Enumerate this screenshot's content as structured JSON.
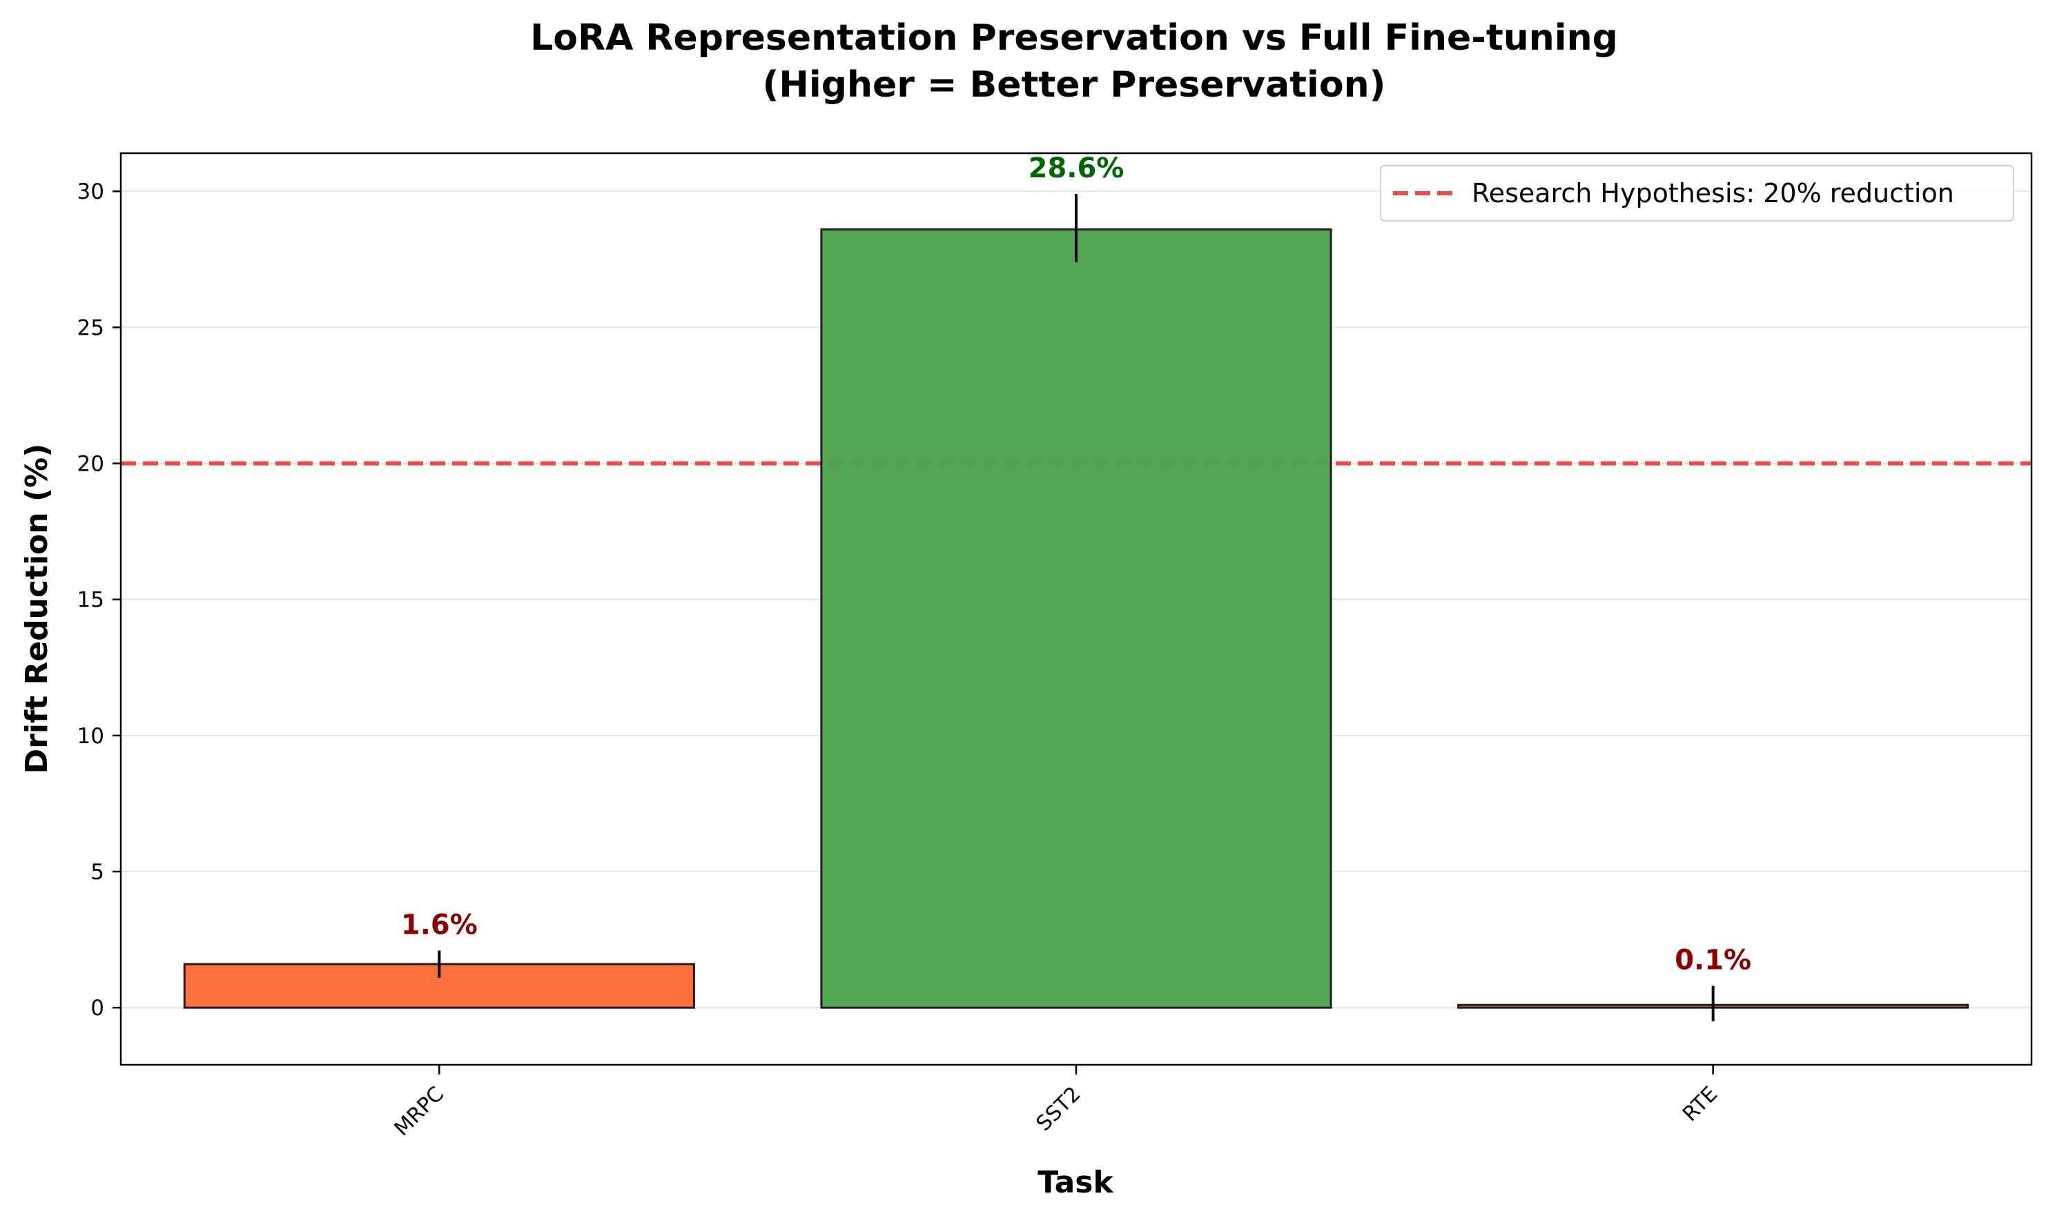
{
  "chart_data": {
    "type": "bar",
    "title_line1": "LoRA Representation Preservation vs Full Fine-tuning",
    "title_line2": "(Higher = Better Preservation)",
    "xlabel": "Task",
    "ylabel": "Drift Reduction (%)",
    "categories": [
      "MRPC",
      "SST2",
      "RTE"
    ],
    "values": [
      1.6,
      28.6,
      0.1
    ],
    "error_low": [
      1.1,
      27.4,
      -0.5
    ],
    "error_high": [
      2.1,
      29.9,
      0.8
    ],
    "data_labels": [
      "1.6%",
      "28.6%",
      "0.1%"
    ],
    "bar_colors": [
      "#ff6b35",
      "#4fa34f",
      "#ff6b35"
    ],
    "label_colors": [
      "#8b0000",
      "#006400",
      "#8b0000"
    ],
    "ylim": [
      -2.1,
      31.4
    ],
    "yticks": [
      0,
      5,
      10,
      15,
      20,
      25,
      30
    ],
    "grid": "horizontal",
    "reference_line": {
      "value": 20,
      "label": "Research Hypothesis: 20% reduction",
      "color": "#f04a4a"
    },
    "legend_position": "top-right"
  }
}
